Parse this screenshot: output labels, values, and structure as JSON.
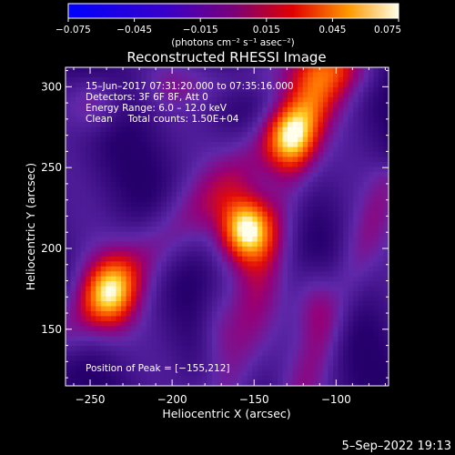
{
  "chart_data": {
    "type": "heatmap",
    "title": "Reconstructed RHESSI Image",
    "xlabel": "Heliocentric X (arcsec)",
    "ylabel": "Heliocentric Y (arcsec)",
    "xlim": [
      -265,
      -68
    ],
    "ylim": [
      115,
      312
    ],
    "x_ticks": [
      -250,
      -200,
      -150,
      -100
    ],
    "x_tick_labels": [
      "−250",
      "−200",
      "−150",
      "−100"
    ],
    "y_ticks": [
      150,
      200,
      250,
      300
    ],
    "y_tick_labels": [
      "150",
      "200",
      "250",
      "300"
    ],
    "colorbar": {
      "min": -0.075,
      "max": 0.075,
      "ticks": [
        -0.075,
        -0.045,
        -0.015,
        0.015,
        0.045,
        0.075
      ],
      "tick_labels": [
        "−0.075",
        "−0.045",
        "−0.015",
        "0.015",
        "0.045",
        "0.075"
      ],
      "units": "(photons cm⁻² s⁻¹ asec⁻²)"
    },
    "annotations": [
      "15–Jun–2017 07:31:20.000 to 07:35:16.000",
      "Detectors: 3F 6F 8F, Att 0",
      "Energy Range: 6.0 – 12.0 keV",
      "Clean     Total counts: 1.50E+04"
    ],
    "peak_label": "Position of Peak = [−155,212]",
    "peak": {
      "x": -155,
      "y": 212,
      "value": 0.075
    },
    "blobs": [
      {
        "x": -155,
        "y": 212,
        "amp": 0.09,
        "sx": 11,
        "sy": 14
      },
      {
        "x": -128,
        "y": 268,
        "amp": 0.06,
        "sx": 11,
        "sy": 14
      },
      {
        "x": -238,
        "y": 172,
        "amp": 0.065,
        "sx": 12,
        "sy": 16
      },
      {
        "x": -248,
        "y": 290,
        "amp": 0.03,
        "sx": 12,
        "sy": 12
      },
      {
        "x": -112,
        "y": 165,
        "amp": 0.028,
        "sx": 9,
        "sy": 16
      },
      {
        "x": -172,
        "y": 150,
        "amp": 0.02,
        "sx": 9,
        "sy": 18
      }
    ],
    "ridges": [
      {
        "x0": -90,
        "y0": 312,
        "x1": -265,
        "y1": 150,
        "amp": 0.032,
        "w": 12
      },
      {
        "x0": -110,
        "y0": 312,
        "x1": -165,
        "y1": 115,
        "amp": 0.03,
        "w": 11
      },
      {
        "x0": -68,
        "y0": 240,
        "x1": -120,
        "y1": 115,
        "amp": 0.022,
        "w": 9
      },
      {
        "x0": -100,
        "y0": 312,
        "x1": -200,
        "y1": 300,
        "amp": 0.018,
        "w": 10
      }
    ],
    "background": {
      "base": -0.03,
      "wave_amp": 0.01
    }
  },
  "footer": {
    "timestamp": "5–Sep–2022 19:13"
  }
}
